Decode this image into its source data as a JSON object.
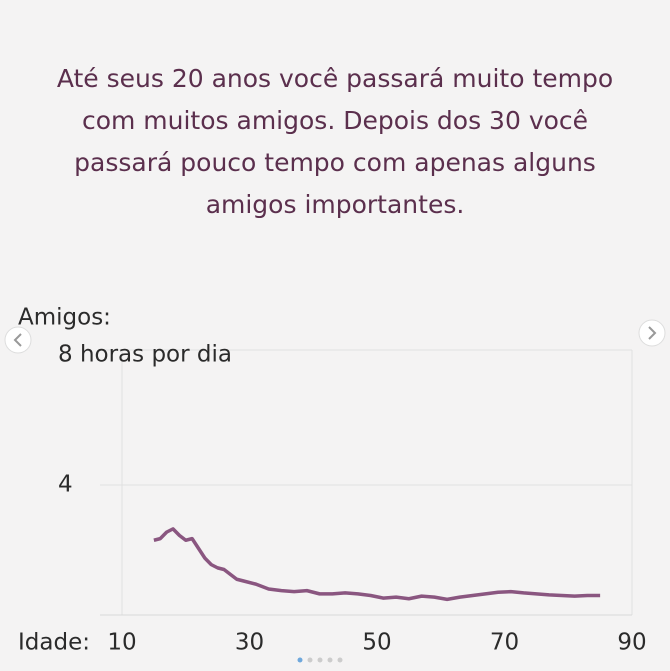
{
  "chart_data": {
    "type": "line",
    "title": "Até seus 20 anos você passará muito tempo com muitos amigos. Depois dos 30 você passará pouco tempo com apenas alguns amigos importantes.",
    "y_label": "Amigos:",
    "x_label": "Idade:",
    "x": [
      15,
      16,
      17,
      18,
      19,
      20,
      21,
      22,
      23,
      24,
      25,
      26,
      27,
      28,
      29,
      31,
      33,
      35,
      37,
      39,
      41,
      43,
      45,
      47,
      49,
      51,
      53,
      55,
      57,
      59,
      61,
      63,
      65,
      67,
      69,
      71,
      73,
      75,
      77,
      79,
      81,
      83,
      85
    ],
    "series": [
      {
        "name": "Amigos",
        "color": "#8a5680",
        "values": [
          2.3,
          2.35,
          2.55,
          2.65,
          2.45,
          2.3,
          2.35,
          2.05,
          1.75,
          1.55,
          1.45,
          1.4,
          1.25,
          1.1,
          1.05,
          0.95,
          0.8,
          0.75,
          0.72,
          0.75,
          0.65,
          0.65,
          0.68,
          0.65,
          0.6,
          0.52,
          0.55,
          0.5,
          0.58,
          0.55,
          0.48,
          0.55,
          0.6,
          0.65,
          0.7,
          0.72,
          0.68,
          0.65,
          0.62,
          0.6,
          0.58,
          0.6,
          0.6
        ]
      }
    ],
    "xlim": [
      10,
      90
    ],
    "xticks": [
      10,
      30,
      50,
      70,
      90
    ],
    "ylim": [
      0,
      8
    ],
    "yticks": [
      4,
      {
        "value": 8,
        "label": "8 horas por dia"
      }
    ],
    "grid": true
  }
}
